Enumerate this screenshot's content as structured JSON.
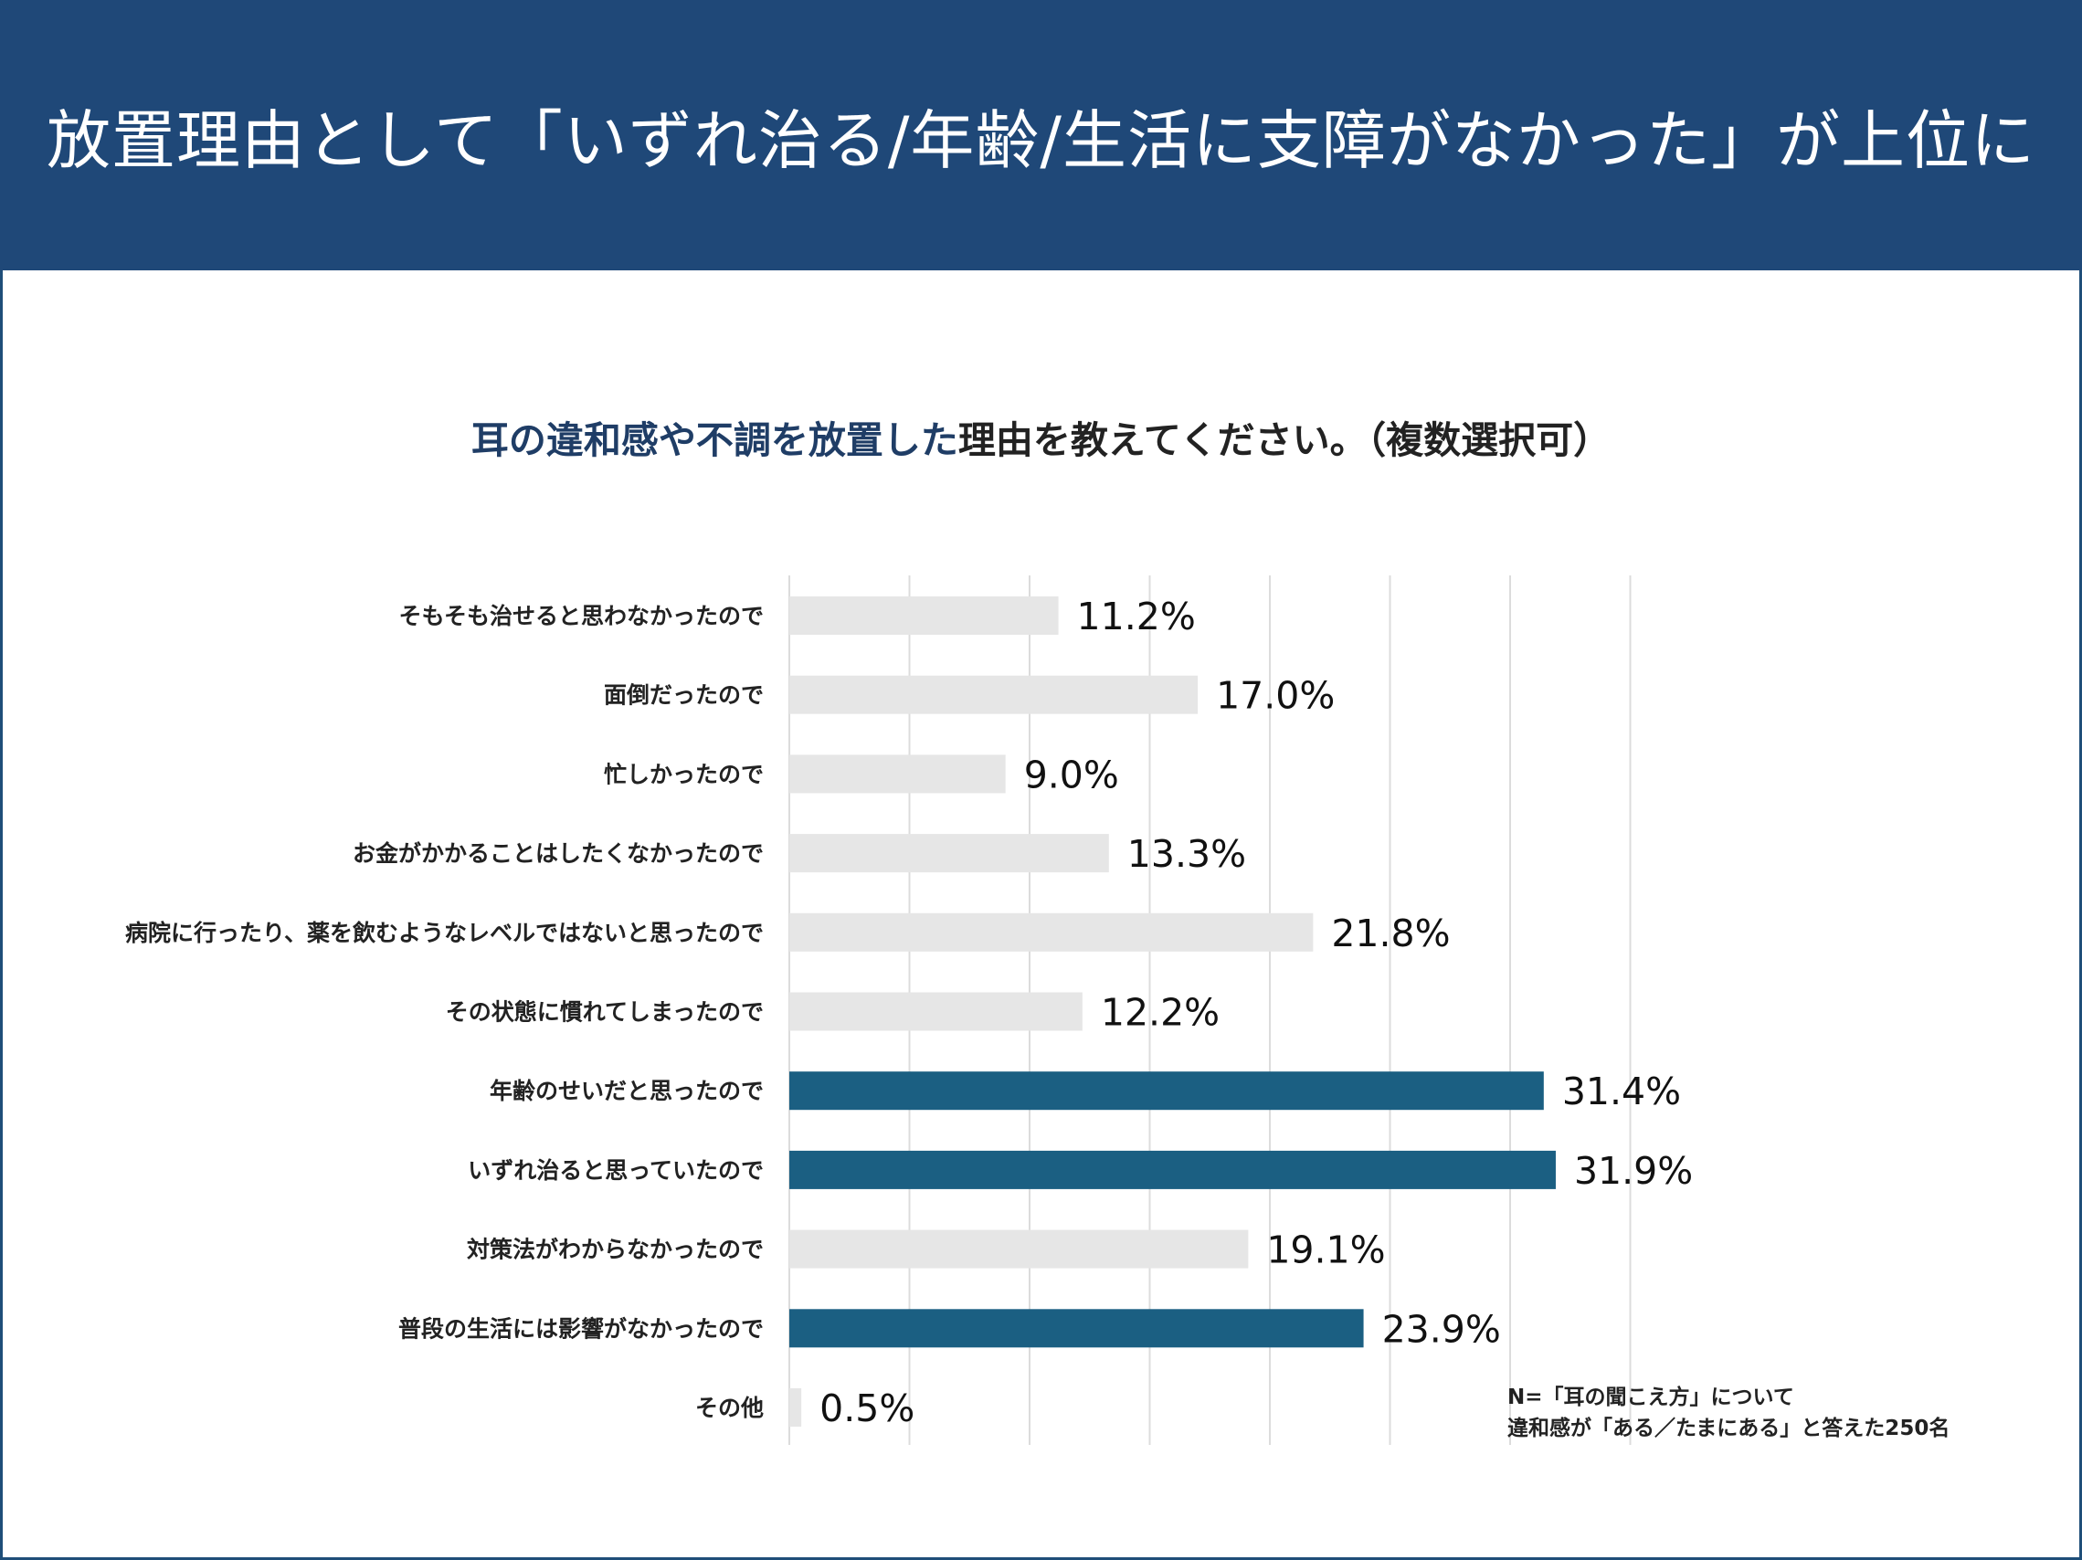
{
  "title": "放置理由として「いずれ治る/年齢/生活に支障がなかった」が上位に",
  "question": {
    "part1": "耳の違和感や不調を放置した",
    "part2": "理由を教えてください。（複数選択可）"
  },
  "note": {
    "line1": "N=「耳の聞こえ方」について",
    "line2": "違和感が「ある／たまにある」と答えた250名"
  },
  "colors": {
    "header_bg": "#1f4878",
    "bar_default": "#e6e6e6",
    "bar_highlight": "#1b5f82",
    "grid": "#dcdcdc"
  },
  "chart_data": {
    "type": "bar",
    "orientation": "horizontal",
    "unit": "%",
    "xlim": [
      0,
      35
    ],
    "grid_step": 5,
    "categories": [
      "そもそも治せると思わなかったので",
      "面倒だったので",
      "忙しかったので",
      "お金がかかることはしたくなかったので",
      "病院に行ったり、薬を飲むようなレベルではないと思ったので",
      "その状態に慣れてしまったので",
      "年齢のせいだと思ったので",
      "いずれ治ると思っていたので",
      "対策法がわからなかったので",
      "普段の生活には影響がなかったので",
      "その他"
    ],
    "values": [
      11.2,
      17.0,
      9.0,
      13.3,
      21.8,
      12.2,
      31.4,
      31.9,
      19.1,
      23.9,
      0.5
    ],
    "value_labels": [
      "11.2%",
      "17.0%",
      "9.0%",
      "13.3%",
      "21.8%",
      "12.2%",
      "31.4%",
      "31.9%",
      "19.1%",
      "23.9%",
      "0.5%"
    ],
    "highlighted": [
      false,
      false,
      false,
      false,
      false,
      false,
      true,
      true,
      false,
      true,
      false
    ]
  }
}
